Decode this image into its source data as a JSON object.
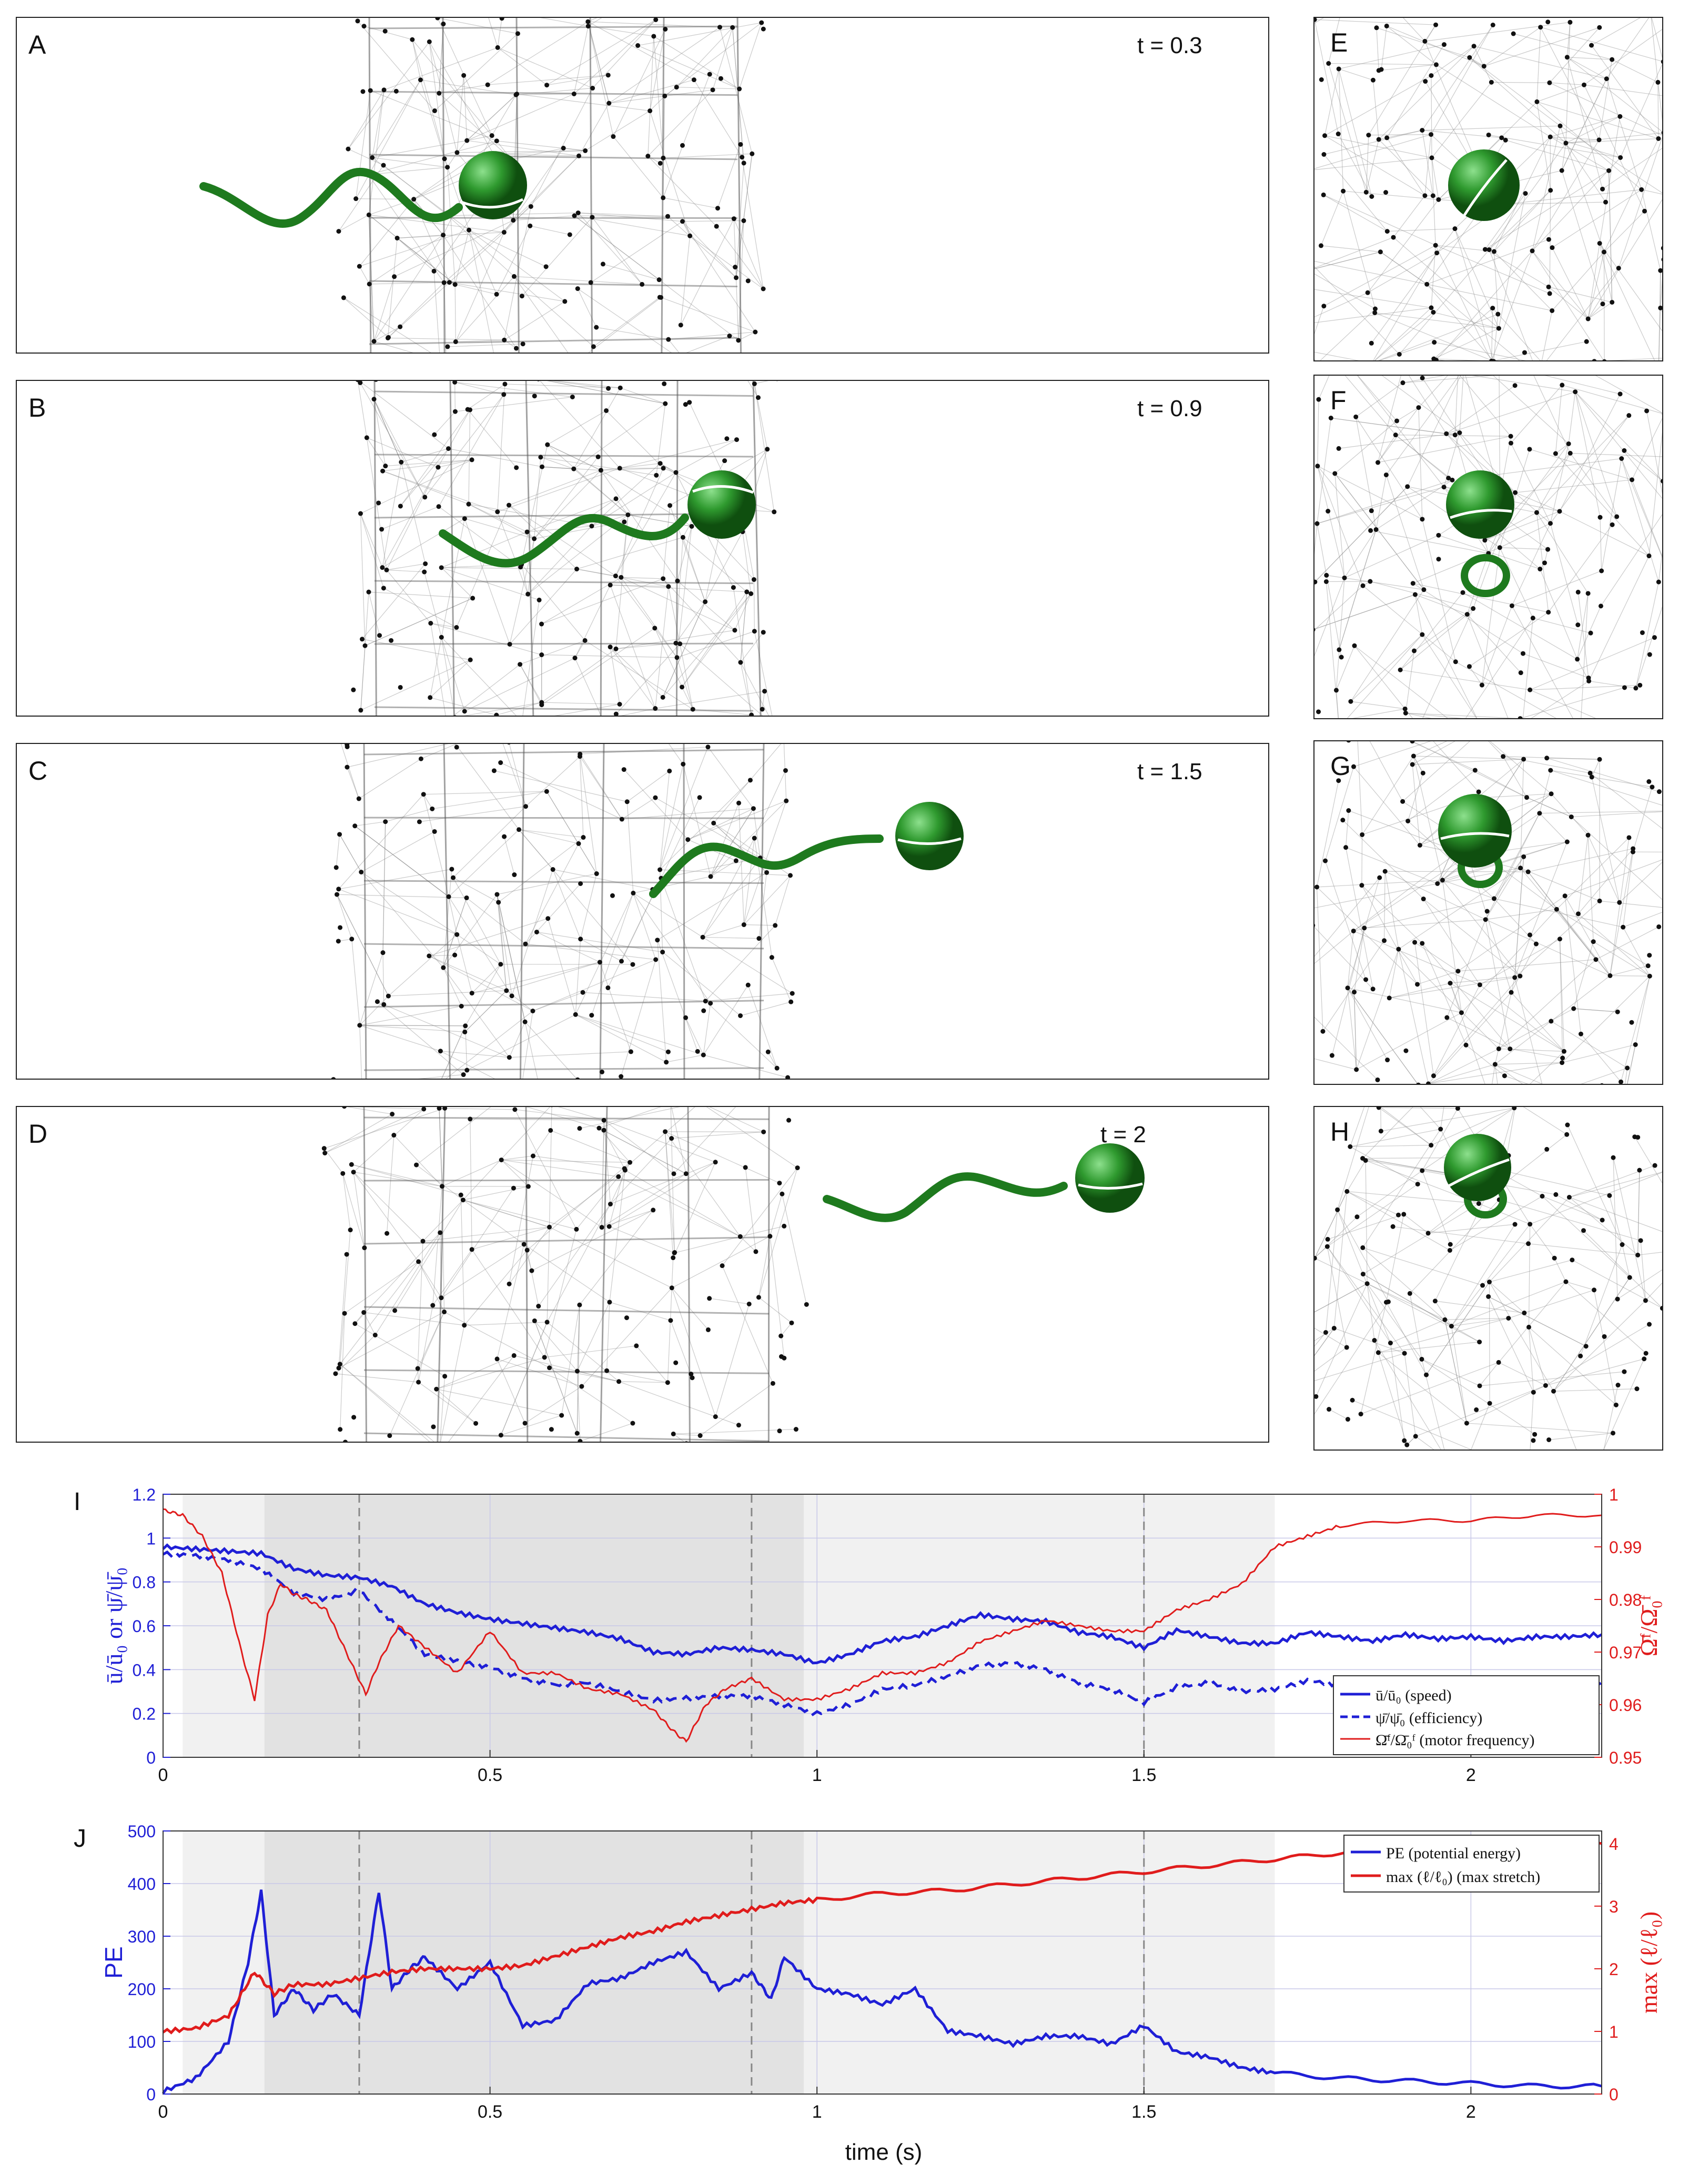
{
  "panels": {
    "A": {
      "label": "A",
      "time": "t = 0.3"
    },
    "B": {
      "label": "B",
      "time": "t = 0.9"
    },
    "C": {
      "label": "C",
      "time": "t = 1.5"
    },
    "D": {
      "label": "D",
      "time": "t = 2"
    },
    "E": {
      "label": "E"
    },
    "F": {
      "label": "F"
    },
    "G": {
      "label": "G"
    },
    "H": {
      "label": "H"
    }
  },
  "colors": {
    "body": "#2f9a2f",
    "tail": "#1e7a1e",
    "network": "#9a9a9a",
    "node": "#111111",
    "speed": "#1f1fd6",
    "freq": "#e01c1c"
  },
  "chart_data": [
    {
      "type": "line",
      "panel_label": "I",
      "xlim": [
        0,
        2.2
      ],
      "ylim": [
        0,
        1.2
      ],
      "y2lim": [
        0.95,
        1.0
      ],
      "xticks": [
        "0",
        "0.5",
        "1",
        "1.5",
        "2"
      ],
      "yticks": [
        "0",
        "0.2",
        "0.4",
        "0.6",
        "0.8",
        "1",
        "1.2"
      ],
      "y2ticks": [
        "0.95",
        "0.96",
        "0.97",
        "0.98",
        "0.99",
        "1"
      ],
      "ylabel": "ū/ū₀ or ψ̄/ψ̄₀",
      "y2label": "Ω̄ᶠ/Ω̄₀ᶠ",
      "legend": "bottom-right",
      "shaded_regions": [
        [
          0.03,
          0.155,
          "light"
        ],
        [
          0.155,
          0.98,
          "dark"
        ],
        [
          0.98,
          1.7,
          "light"
        ]
      ],
      "dashed_vlines": [
        0.3,
        0.9,
        1.5
      ],
      "series": [
        {
          "name": "ū/ū₀ (speed)",
          "style": "solid",
          "axis": "left",
          "x": [
            0,
            0.05,
            0.1,
            0.15,
            0.2,
            0.25,
            0.3,
            0.35,
            0.4,
            0.45,
            0.5,
            0.55,
            0.6,
            0.65,
            0.7,
            0.75,
            0.8,
            0.85,
            0.9,
            0.95,
            1.0,
            1.05,
            1.1,
            1.15,
            1.2,
            1.25,
            1.3,
            1.35,
            1.4,
            1.45,
            1.5,
            1.55,
            1.6,
            1.65,
            1.7,
            1.75,
            1.8,
            1.85,
            1.9,
            1.95,
            2.0,
            2.05,
            2.1,
            2.15,
            2.2
          ],
          "y": [
            0.96,
            0.95,
            0.94,
            0.93,
            0.86,
            0.83,
            0.82,
            0.78,
            0.7,
            0.66,
            0.63,
            0.61,
            0.59,
            0.57,
            0.54,
            0.48,
            0.47,
            0.5,
            0.49,
            0.47,
            0.43,
            0.47,
            0.53,
            0.55,
            0.6,
            0.65,
            0.63,
            0.62,
            0.57,
            0.55,
            0.5,
            0.58,
            0.55,
            0.52,
            0.52,
            0.57,
            0.55,
            0.53,
            0.56,
            0.54,
            0.55,
            0.53,
            0.55,
            0.55,
            0.56
          ]
        },
        {
          "name": "ψ̄/ψ̄₀ (efficiency)",
          "style": "dashed",
          "axis": "left",
          "x": [
            0,
            0.05,
            0.1,
            0.15,
            0.2,
            0.25,
            0.3,
            0.35,
            0.4,
            0.45,
            0.5,
            0.55,
            0.6,
            0.65,
            0.7,
            0.75,
            0.8,
            0.85,
            0.9,
            0.95,
            1.0,
            1.05,
            1.1,
            1.15,
            1.2,
            1.25,
            1.3,
            1.35,
            1.4,
            1.45,
            1.5,
            1.55,
            1.6,
            1.65,
            1.7,
            1.75,
            1.8,
            1.85,
            1.9,
            1.95,
            2.0,
            2.05,
            2.1,
            2.15,
            2.2
          ],
          "y": [
            0.93,
            0.92,
            0.9,
            0.86,
            0.75,
            0.72,
            0.76,
            0.62,
            0.47,
            0.44,
            0.41,
            0.36,
            0.33,
            0.34,
            0.3,
            0.26,
            0.27,
            0.28,
            0.28,
            0.24,
            0.2,
            0.24,
            0.31,
            0.33,
            0.37,
            0.42,
            0.43,
            0.4,
            0.34,
            0.31,
            0.25,
            0.32,
            0.34,
            0.3,
            0.31,
            0.35,
            0.33,
            0.3,
            0.33,
            0.32,
            0.33,
            0.3,
            0.33,
            0.33,
            0.34
          ]
        },
        {
          "name": "Ω̄ᶠ/Ω̄₀ᶠ (motor frequency)",
          "style": "solid",
          "axis": "right",
          "x": [
            0,
            0.03,
            0.06,
            0.09,
            0.12,
            0.14,
            0.16,
            0.18,
            0.2,
            0.22,
            0.25,
            0.28,
            0.31,
            0.33,
            0.36,
            0.4,
            0.45,
            0.5,
            0.55,
            0.6,
            0.65,
            0.7,
            0.75,
            0.78,
            0.8,
            0.83,
            0.86,
            0.9,
            0.95,
            1.0,
            1.05,
            1.1,
            1.15,
            1.2,
            1.25,
            1.3,
            1.35,
            1.4,
            1.45,
            1.5,
            1.55,
            1.6,
            1.65,
            1.7,
            1.75,
            1.8,
            1.9,
            2.0,
            2.1,
            2.2
          ],
          "y": [
            0.997,
            0.996,
            0.992,
            0.985,
            0.97,
            0.961,
            0.977,
            0.983,
            0.981,
            0.98,
            0.978,
            0.97,
            0.962,
            0.968,
            0.975,
            0.971,
            0.966,
            0.974,
            0.966,
            0.966,
            0.963,
            0.962,
            0.959,
            0.955,
            0.953,
            0.96,
            0.963,
            0.965,
            0.961,
            0.961,
            0.963,
            0.966,
            0.966,
            0.968,
            0.972,
            0.974,
            0.976,
            0.975,
            0.974,
            0.974,
            0.978,
            0.98,
            0.983,
            0.99,
            0.992,
            0.994,
            0.995,
            0.995,
            0.996,
            0.996
          ]
        }
      ]
    },
    {
      "type": "line",
      "panel_label": "J",
      "xlim": [
        0,
        2.2
      ],
      "ylim": [
        0,
        500
      ],
      "y2lim": [
        0,
        4.2
      ],
      "xticks": [
        "0",
        "0.5",
        "1",
        "1.5",
        "2"
      ],
      "yticks": [
        "0",
        "100",
        "200",
        "300",
        "400",
        "500"
      ],
      "y2ticks": [
        "0",
        "1",
        "2",
        "3",
        "4"
      ],
      "xlabel": "time (s)",
      "ylabel": "PE",
      "y2label": "max (ℓ/ℓ₀)",
      "legend": "top-right",
      "shaded_regions": [
        [
          0.03,
          0.155,
          "light"
        ],
        [
          0.155,
          0.98,
          "dark"
        ],
        [
          0.98,
          1.7,
          "light"
        ]
      ],
      "dashed_vlines": [
        0.3,
        0.9,
        1.5
      ],
      "series": [
        {
          "name": "PE (potential energy)",
          "axis": "left",
          "x": [
            0,
            0.05,
            0.1,
            0.13,
            0.15,
            0.17,
            0.2,
            0.23,
            0.26,
            0.3,
            0.33,
            0.35,
            0.38,
            0.4,
            0.45,
            0.5,
            0.55,
            0.6,
            0.65,
            0.7,
            0.75,
            0.8,
            0.85,
            0.9,
            0.93,
            0.95,
            1.0,
            1.05,
            1.1,
            1.15,
            1.2,
            1.25,
            1.3,
            1.35,
            1.4,
            1.45,
            1.5,
            1.55,
            1.6,
            1.65,
            1.7,
            1.8,
            1.9,
            2.0,
            2.1,
            2.2
          ],
          "y": [
            5,
            30,
            100,
            250,
            385,
            150,
            200,
            160,
            190,
            150,
            385,
            200,
            240,
            260,
            200,
            250,
            130,
            140,
            210,
            220,
            250,
            270,
            200,
            230,
            180,
            260,
            200,
            190,
            170,
            200,
            120,
            110,
            95,
            110,
            110,
            95,
            130,
            80,
            70,
            50,
            40,
            30,
            25,
            20,
            15,
            15
          ]
        },
        {
          "name": "max (ℓ/ℓ₀) (max stretch)",
          "axis": "right",
          "x": [
            0,
            0.05,
            0.1,
            0.14,
            0.17,
            0.2,
            0.25,
            0.3,
            0.35,
            0.4,
            0.45,
            0.5,
            0.55,
            0.6,
            0.65,
            0.7,
            0.75,
            0.8,
            0.85,
            0.9,
            0.95,
            1.0,
            1.1,
            1.2,
            1.3,
            1.4,
            1.5,
            1.6,
            1.7,
            1.8,
            1.9,
            2.0,
            2.1,
            2.2
          ],
          "y": [
            1.0,
            1.05,
            1.25,
            1.95,
            1.6,
            1.75,
            1.75,
            1.85,
            1.95,
            2.0,
            2.0,
            2.0,
            2.05,
            2.2,
            2.35,
            2.5,
            2.6,
            2.75,
            2.85,
            2.95,
            3.05,
            3.1,
            3.2,
            3.25,
            3.35,
            3.45,
            3.55,
            3.65,
            3.75,
            3.85,
            3.9,
            3.95,
            4.0,
            4.0
          ]
        }
      ]
    }
  ]
}
